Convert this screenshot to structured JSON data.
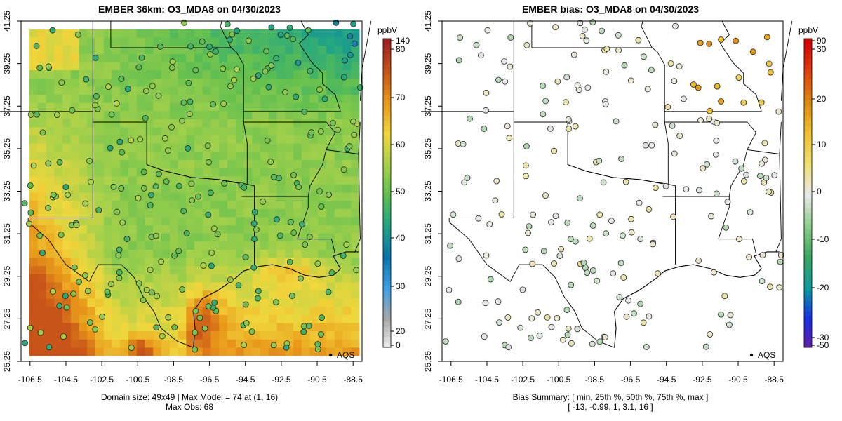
{
  "chart_data": [
    {
      "type": "heatmap",
      "title": "EMBER 36km: O3_MDA8 on 04/30/2023",
      "x_ticks": [
        "-106.5",
        "-104.5",
        "-102.5",
        "-100.5",
        "-98.5",
        "-96.5",
        "-94.5",
        "-92.5",
        "-90.5",
        "-88.5"
      ],
      "y_ticks": [
        "41.25",
        "39.25",
        "37.25",
        "35.25",
        "33.25",
        "31.25",
        "29.25",
        "27.25",
        "25.25"
      ],
      "xlim": [
        -107.0,
        -88.0
      ],
      "ylim": [
        25.25,
        41.25
      ],
      "colorbar_unit": "ppbV",
      "colorbar_ticks": [
        "140",
        "80",
        "70",
        "60",
        "50",
        "40",
        "30",
        "20",
        "0"
      ],
      "legend": "AQS",
      "legend_placement": "bottom-right",
      "footer_line1": "Domain size: 49x49 | Max Model = 74 at (1, 16)",
      "footer_line2": "Max Obs: 68",
      "palette": [
        "#f2f2f2",
        "#a8a8a8",
        "#3ea0e6",
        "#0a74ae",
        "#1fa585",
        "#5fbf50",
        "#a7d14a",
        "#f0d73c",
        "#e99a1a",
        "#c85418",
        "#a02222"
      ]
    },
    {
      "type": "scatter",
      "title": "EMBER bias: O3_MDA8 on 04/30/2023",
      "x_ticks": [
        "-106.5",
        "-104.5",
        "-102.5",
        "-100.5",
        "-98.5",
        "-96.5",
        "-94.5",
        "-92.5",
        "-90.5",
        "-88.5"
      ],
      "y_ticks": [
        "41.25",
        "39.25",
        "37.25",
        "35.25",
        "33.25",
        "31.25",
        "29.25",
        "27.25",
        "25.25"
      ],
      "xlim": [
        -107.0,
        -88.0
      ],
      "ylim": [
        25.25,
        41.25
      ],
      "colorbar_unit": "ppbV",
      "colorbar_ticks": [
        "90",
        "30",
        "20",
        "10",
        "0",
        "-10",
        "-20",
        "-30",
        "-50"
      ],
      "legend": "AQS",
      "legend_placement": "bottom-right",
      "footer_line1": "Bias Summary: [ min, 25th %, 50th %, 75th %, max ]",
      "footer_line2": "[ -13,   -0.99,   1,   3.1,   16 ]",
      "bias_summary": [
        -13,
        -0.99,
        1,
        3.1,
        16
      ],
      "palette": [
        "#6a1fa8",
        "#1830e6",
        "#0a9aa0",
        "#3aa660",
        "#8ccf8c",
        "#e8e8e8",
        "#f0e070",
        "#f0c030",
        "#e08a10",
        "#e04010",
        "#d80000"
      ]
    }
  ]
}
